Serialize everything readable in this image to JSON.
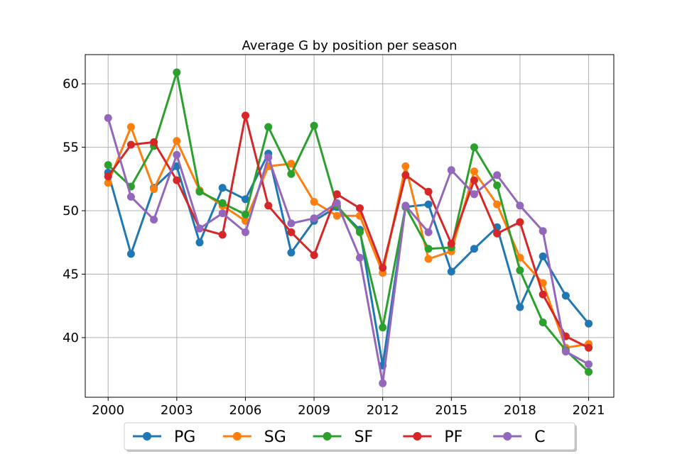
{
  "chart_data": {
    "type": "line",
    "title": "Average G by position per season",
    "xlabel": "",
    "ylabel": "",
    "x": [
      2000,
      2001,
      2002,
      2003,
      2004,
      2005,
      2006,
      2007,
      2008,
      2009,
      2010,
      2011,
      2012,
      2013,
      2014,
      2015,
      2016,
      2017,
      2018,
      2019,
      2020,
      2021
    ],
    "xlim": [
      1999,
      2022.1
    ],
    "ylim": [
      35.3,
      62.3
    ],
    "xticks": [
      2000,
      2003,
      2006,
      2009,
      2012,
      2015,
      2018,
      2021
    ],
    "yticks": [
      40,
      45,
      50,
      55,
      60
    ],
    "grid": true,
    "legend_position": "bottom-center",
    "series": [
      {
        "name": "PG",
        "color": "#1f77b4",
        "values": [
          53.0,
          46.6,
          51.8,
          53.5,
          47.5,
          51.8,
          50.9,
          54.5,
          46.7,
          49.2,
          50.3,
          48.5,
          37.8,
          50.3,
          50.5,
          45.2,
          47.0,
          48.7,
          42.4,
          46.4,
          43.3,
          41.1
        ]
      },
      {
        "name": "SG",
        "color": "#ff7f0e",
        "values": [
          52.2,
          56.6,
          51.7,
          55.5,
          51.6,
          50.4,
          49.2,
          53.5,
          53.7,
          50.7,
          49.6,
          49.6,
          45.1,
          53.5,
          46.2,
          46.8,
          53.1,
          50.5,
          46.3,
          44.3,
          39.2,
          39.5
        ]
      },
      {
        "name": "SF",
        "color": "#2ca02c",
        "values": [
          53.6,
          51.9,
          55.1,
          60.9,
          51.5,
          50.6,
          49.7,
          56.6,
          52.9,
          56.7,
          50.4,
          48.3,
          40.8,
          50.3,
          47.0,
          47.1,
          55.0,
          52.0,
          45.3,
          41.2,
          39.0,
          37.3
        ]
      },
      {
        "name": "PF",
        "color": "#d62728",
        "values": [
          52.7,
          55.2,
          55.4,
          52.4,
          48.6,
          48.1,
          57.5,
          50.4,
          48.3,
          46.5,
          51.3,
          50.2,
          45.5,
          52.8,
          51.5,
          47.4,
          52.4,
          48.2,
          49.1,
          43.4,
          40.1,
          39.2
        ]
      },
      {
        "name": "C",
        "color": "#9467bd",
        "values": [
          57.3,
          51.1,
          49.3,
          54.4,
          48.6,
          49.8,
          48.3,
          54.2,
          49.0,
          49.4,
          50.6,
          46.3,
          36.4,
          50.4,
          48.3,
          53.2,
          51.3,
          52.8,
          50.4,
          48.4,
          38.9,
          37.9
        ]
      }
    ]
  }
}
